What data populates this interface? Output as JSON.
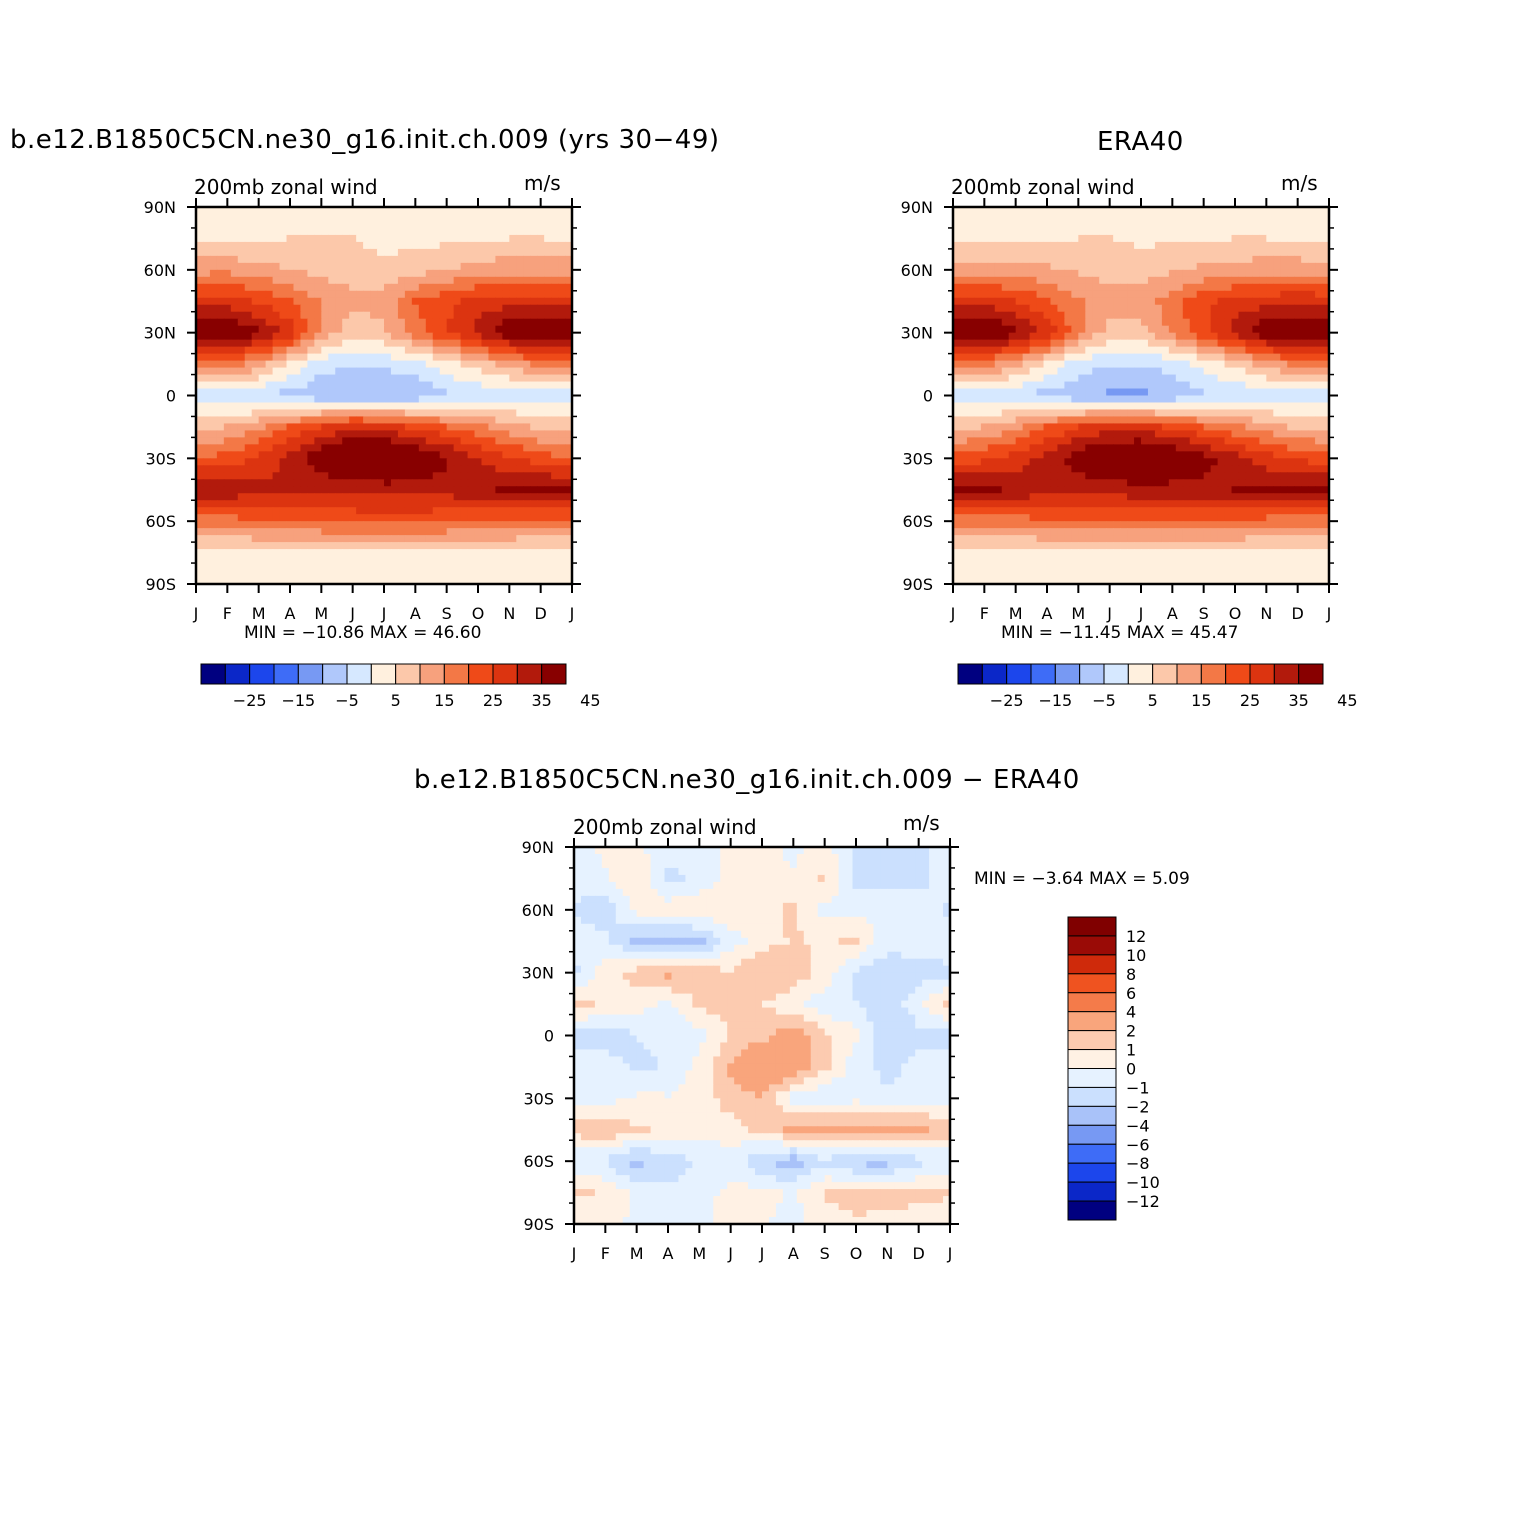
{
  "colors": {
    "scale_main": [
      "#000080",
      "#0b27c8",
      "#1c46ec",
      "#3e6cf7",
      "#7799f3",
      "#b0c8fb",
      "#d6e8ff",
      "#fff0de",
      "#fcc8aa",
      "#f7a17d",
      "#f37846",
      "#ef4a18",
      "#dc3410",
      "#b21a0c",
      "#880000"
    ],
    "scale_diff": [
      "#000080",
      "#0b27c8",
      "#1c46ec",
      "#3e6cf7",
      "#7799f3",
      "#a9c2f9",
      "#cbe0fe",
      "#e6f2ff",
      "#fff1e4",
      "#fccbb0",
      "#f9a57c",
      "#f47b4a",
      "#ef5320",
      "#cf2a0b",
      "#9a0b06",
      "#800000"
    ]
  },
  "panels": [
    {
      "id": "model",
      "title": "b.e12.B1850C5CN.ne30_g16.init.ch.009 (yrs 30−49)",
      "left_label": "200mb zonal wind",
      "right_label": "m/s",
      "min_max": "MIN = −10.86 MAX =  46.60",
      "colorbar_labels": [
        "−25",
        "−15",
        "−5",
        "5",
        "15",
        "25",
        "35",
        "45"
      ]
    },
    {
      "id": "obs",
      "title": "ERA40",
      "left_label": "200mb zonal wind",
      "right_label": "m/s",
      "min_max": "MIN = −11.45 MAX =  45.47",
      "colorbar_labels": [
        "−25",
        "−15",
        "−5",
        "5",
        "15",
        "25",
        "35",
        "45"
      ]
    },
    {
      "id": "diff",
      "title": "b.e12.B1850C5CN.ne30_g16.init.ch.009 − ERA40",
      "left_label": "200mb zonal wind",
      "right_label": "m/s",
      "min_max": "MIN =   −3.64 MAX =    5.09",
      "colorbar_labels": [
        "12",
        "10",
        "8",
        "6",
        "4",
        "2",
        "1",
        "0",
        "−1",
        "−2",
        "−4",
        "−6",
        "−8",
        "−10",
        "−12"
      ]
    }
  ],
  "axes": {
    "y_labels": [
      "90N",
      "60N",
      "30N",
      "0",
      "30S",
      "60S",
      "90S"
    ],
    "x_labels": [
      "J",
      "F",
      "M",
      "A",
      "M",
      "J",
      "J",
      "A",
      "S",
      "O",
      "N",
      "D",
      "J"
    ]
  },
  "chart_data": [
    {
      "type": "heatmap",
      "title": "b.e12.B1850C5CN.ne30_g16.init.ch.009 (yrs 30−49)",
      "subtitle": "200mb zonal wind",
      "units": "m/s",
      "x": [
        "J",
        "F",
        "M",
        "A",
        "M",
        "J",
        "J",
        "A",
        "S",
        "O",
        "N",
        "D",
        "J"
      ],
      "y": [
        90,
        75,
        60,
        45,
        30,
        15,
        0,
        -15,
        -30,
        -45,
        -60,
        -75,
        -90
      ],
      "ylim": [
        -90,
        90
      ],
      "z": [
        [
          0,
          0,
          0,
          0,
          0,
          0,
          0,
          0,
          0,
          0,
          0,
          0,
          0
        ],
        [
          4,
          3,
          4,
          5,
          6,
          5,
          3,
          3,
          4,
          4,
          5,
          5,
          4
        ],
        [
          13,
          14,
          12,
          10,
          8,
          8,
          7,
          8,
          10,
          12,
          13,
          13,
          13
        ],
        [
          27,
          27,
          24,
          20,
          15,
          11,
          12,
          20,
          24,
          27,
          28,
          28,
          27
        ],
        [
          42,
          41,
          36,
          28,
          14,
          7,
          9,
          18,
          25,
          32,
          40,
          42,
          42
        ],
        [
          20,
          18,
          13,
          4,
          -3,
          -5,
          -4,
          -2,
          3,
          7,
          12,
          17,
          20
        ],
        [
          -3,
          -4,
          -5,
          -7,
          -9,
          -10,
          -10,
          -9,
          -6,
          -4,
          -3,
          -3,
          -3
        ],
        [
          8,
          10,
          14,
          20,
          25,
          29,
          28,
          24,
          20,
          16,
          12,
          9,
          8
        ],
        [
          20,
          22,
          26,
          32,
          40,
          45,
          46,
          42,
          36,
          30,
          26,
          22,
          20
        ],
        [
          35,
          34,
          32,
          30,
          30,
          31,
          32,
          32,
          32,
          34,
          36,
          37,
          36
        ],
        [
          18,
          18,
          19,
          20,
          21,
          22,
          22,
          22,
          21,
          20,
          19,
          18,
          18
        ],
        [
          2,
          3,
          3,
          3,
          3,
          3,
          3,
          3,
          3,
          3,
          3,
          3,
          2
        ],
        [
          0,
          0,
          0,
          0,
          0,
          0,
          0,
          0,
          0,
          0,
          0,
          0,
          0
        ]
      ],
      "levels": [
        -30,
        -25,
        -20,
        -15,
        -10,
        -5,
        0,
        5,
        10,
        15,
        20,
        25,
        30,
        35,
        40,
        45
      ]
    },
    {
      "type": "heatmap",
      "title": "ERA40",
      "subtitle": "200mb zonal wind",
      "units": "m/s",
      "x": [
        "J",
        "F",
        "M",
        "A",
        "M",
        "J",
        "J",
        "A",
        "S",
        "O",
        "N",
        "D",
        "J"
      ],
      "y": [
        90,
        75,
        60,
        45,
        30,
        15,
        0,
        -15,
        -30,
        -45,
        -60,
        -75,
        -90
      ],
      "ylim": [
        -90,
        90
      ],
      "z": [
        [
          0,
          0,
          0,
          0,
          0,
          0,
          0,
          0,
          0,
          0,
          0,
          0,
          0
        ],
        [
          3,
          3,
          3,
          4,
          5,
          5,
          4,
          4,
          4,
          5,
          5,
          4,
          3
        ],
        [
          13,
          13,
          12,
          11,
          9,
          8,
          8,
          9,
          11,
          12,
          13,
          13,
          13
        ],
        [
          28,
          28,
          25,
          21,
          16,
          12,
          12,
          18,
          24,
          27,
          28,
          29,
          28
        ],
        [
          43,
          42,
          37,
          29,
          16,
          8,
          8,
          16,
          24,
          32,
          40,
          42,
          43
        ],
        [
          18,
          16,
          12,
          4,
          -2,
          -5,
          -5,
          -3,
          2,
          6,
          12,
          16,
          18
        ],
        [
          -3,
          -3,
          -5,
          -7,
          -9,
          -11,
          -11,
          -9,
          -6,
          -4,
          -3,
          -3,
          -3
        ],
        [
          8,
          10,
          14,
          20,
          25,
          28,
          28,
          24,
          20,
          16,
          12,
          9,
          8
        ],
        [
          22,
          24,
          27,
          32,
          38,
          43,
          44,
          42,
          37,
          32,
          27,
          24,
          22
        ],
        [
          38,
          36,
          34,
          32,
          31,
          32,
          33,
          33,
          33,
          35,
          36,
          38,
          38
        ],
        [
          17,
          17,
          18,
          19,
          20,
          21,
          21,
          21,
          20,
          19,
          18,
          17,
          17
        ],
        [
          2,
          2,
          3,
          3,
          3,
          3,
          3,
          3,
          3,
          3,
          3,
          3,
          2
        ],
        [
          0,
          0,
          0,
          0,
          0,
          0,
          0,
          0,
          0,
          0,
          0,
          0,
          0
        ]
      ],
      "levels": [
        -30,
        -25,
        -20,
        -15,
        -10,
        -5,
        0,
        5,
        10,
        15,
        20,
        25,
        30,
        35,
        40,
        45
      ]
    },
    {
      "type": "heatmap",
      "title": "b.e12.B1850C5CN.ne30_g16.init.ch.009 − ERA40",
      "subtitle": "200mb zonal wind",
      "units": "m/s",
      "x": [
        "J",
        "F",
        "M",
        "A",
        "M",
        "J",
        "J",
        "A",
        "S",
        "O",
        "N",
        "D",
        "J"
      ],
      "y": [
        90,
        75,
        60,
        45,
        30,
        15,
        0,
        -15,
        -30,
        -45,
        -60,
        -75,
        -90
      ],
      "ylim": [
        -90,
        90
      ],
      "z": [
        [
          -0.5,
          0.3,
          0.2,
          -0.5,
          -0.3,
          0.1,
          0.2,
          -0.2,
          0.5,
          -1.2,
          -1.5,
          -1.2,
          -0.5
        ],
        [
          -0.5,
          -0.2,
          0.8,
          -1.3,
          -0.8,
          0.5,
          0.6,
          0.1,
          1.2,
          -1.5,
          -1.3,
          -1.4,
          -0.5
        ],
        [
          -1.2,
          -1.6,
          0.3,
          0.6,
          0.9,
          0.8,
          0.4,
          1.3,
          -0.4,
          -0.3,
          -0.6,
          -0.5,
          -1.2
        ],
        [
          -0.3,
          -0.8,
          -2.3,
          -2.6,
          -2.4,
          -0.5,
          0.6,
          1.1,
          0.8,
          1.2,
          -0.6,
          -0.4,
          -0.3
        ],
        [
          -1.3,
          0.6,
          1.4,
          2.4,
          1.7,
          1.1,
          2.1,
          1.6,
          0.7,
          -1.2,
          -1.8,
          -1.4,
          -1.3
        ],
        [
          1.5,
          0.7,
          0.5,
          -0.3,
          1.2,
          1.5,
          1.0,
          0.3,
          -0.7,
          -1.0,
          -1.5,
          -0.4,
          1.5
        ],
        [
          -1.4,
          -1.6,
          -1.0,
          -0.8,
          -0.4,
          1.1,
          1.6,
          2.7,
          1.3,
          0.3,
          -2.1,
          -1.3,
          -1.4
        ],
        [
          -0.6,
          -0.5,
          -1.2,
          -0.9,
          0.4,
          2.2,
          4.0,
          3.0,
          1.2,
          -0.6,
          -1.3,
          -0.7,
          -0.6
        ],
        [
          -0.3,
          -0.4,
          0.2,
          0.1,
          0.3,
          1.6,
          1.8,
          -0.4,
          -1.0,
          -0.3,
          -0.8,
          -0.5,
          -0.3
        ],
        [
          1.5,
          1.9,
          1.1,
          0.8,
          0.7,
          0.4,
          1.5,
          2.2,
          2.6,
          2.5,
          2.5,
          2.4,
          1.5
        ],
        [
          -1.0,
          -1.2,
          -2.4,
          -1.5,
          -1.0,
          -0.4,
          -2.1,
          -2.6,
          -1.2,
          -2.4,
          -2.5,
          -1.3,
          -1.0
        ],
        [
          1.2,
          0.9,
          -0.2,
          -0.8,
          -0.4,
          0.3,
          0.4,
          -0.2,
          1.1,
          1.5,
          1.4,
          1.2,
          1.2
        ],
        [
          0.2,
          0.5,
          -0.3,
          -0.4,
          -0.2,
          0.4,
          0.1,
          -0.3,
          0.5,
          0.8,
          0.7,
          0.6,
          0.2
        ]
      ],
      "levels": [
        -12,
        -10,
        -8,
        -6,
        -4,
        -2,
        -1,
        0,
        1,
        2,
        4,
        6,
        8,
        10,
        12
      ]
    }
  ]
}
